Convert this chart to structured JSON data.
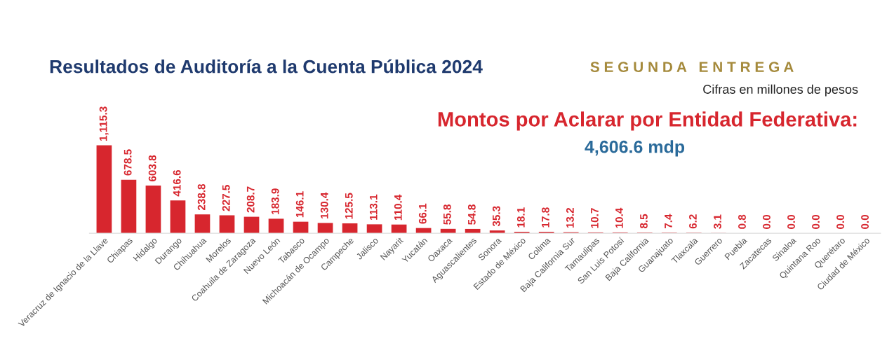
{
  "chart_data": {
    "type": "bar",
    "title": "Resultados de Auditoría a la Cuenta Pública 2024",
    "annotations": [
      "S E G U N D A   E N T R E G A",
      "Cifras en millones de pesos",
      "Montos por Aclarar por Entidad Federativa:",
      "4,606.6 mdp"
    ],
    "categories": [
      "Veracruz de Ignacio de la Llave",
      "Chiapas",
      "Hidalgo",
      "Durango",
      "Chihuahua",
      "Morelos",
      "Coahuila de Zaragoza",
      "Nuevo León",
      "Tabasco",
      "Michoacán de Ocampo",
      "Campeche",
      "Jalisco",
      "Nayarit",
      "Yucatán",
      "Oaxaca",
      "Aguascalientes",
      "Sonora",
      "Estado de México",
      "Colima",
      "Baja California Sur",
      "Tamaulipas",
      "San Luis Potosí",
      "Baja California",
      "Guanajuato",
      "Tlaxcala",
      "Guerrero",
      "Puebla",
      "Zacatecas",
      "Sinaloa",
      "Quintana Roo",
      "Querétaro",
      "Ciudad de México"
    ],
    "values": [
      1115.3,
      678.5,
      603.8,
      416.6,
      238.8,
      227.5,
      208.7,
      183.9,
      146.1,
      130.4,
      125.5,
      113.1,
      110.4,
      66.1,
      55.8,
      54.8,
      35.3,
      18.1,
      17.8,
      13.2,
      10.7,
      10.4,
      8.5,
      7.4,
      6.2,
      3.1,
      0.8,
      0.0,
      0.0,
      0.0,
      0.0,
      0.0
    ],
    "value_labels": [
      "1,115.3",
      "678.5",
      "603.8",
      "416.6",
      "238.8",
      "227.5",
      "208.7",
      "183.9",
      "146.1",
      "130.4",
      "125.5",
      "113.1",
      "110.4",
      "66.1",
      "55.8",
      "54.8",
      "35.3",
      "18.1",
      "17.8",
      "13.2",
      "10.7",
      "10.4",
      "8.5",
      "7.4",
      "6.2",
      "3.1",
      "0.8",
      "0.0",
      "0.0",
      "0.0",
      "0.0",
      "0.0"
    ],
    "color": "#d7262e",
    "grid": false,
    "legend": false
  }
}
